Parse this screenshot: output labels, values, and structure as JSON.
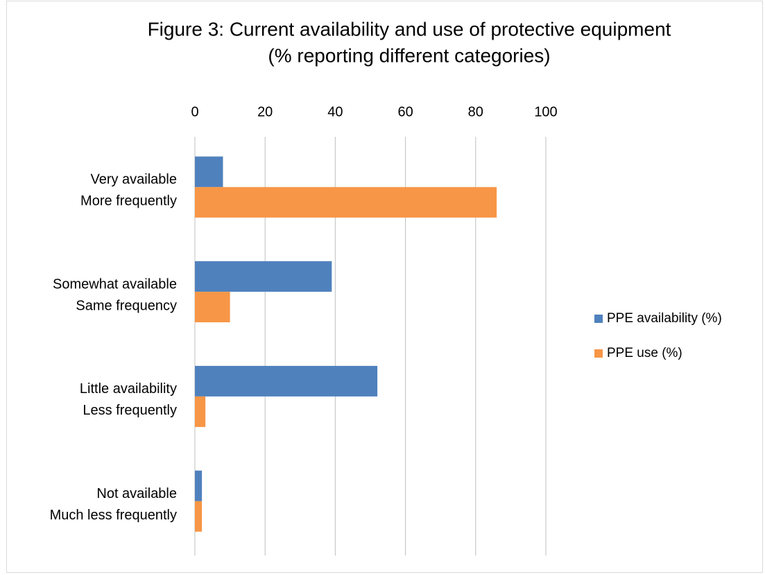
{
  "chart_data": {
    "type": "hbar",
    "title": "Figure 3: Current availability and use of protective equipment",
    "subtitle": "(% reporting different categories)",
    "categories": [
      [
        "Very available",
        "More frequently"
      ],
      [
        "Somewhat available",
        "Same frequency"
      ],
      [
        "Little availability",
        "Less frequently"
      ],
      [
        "Not available",
        "Much less frequently"
      ]
    ],
    "series": [
      {
        "name": "PPE availability (%)",
        "color": "#4f81bd",
        "values": [
          8,
          39,
          52,
          2
        ]
      },
      {
        "name": "PPE use (%)",
        "color": "#f79646",
        "values": [
          86,
          10,
          3,
          2
        ]
      }
    ],
    "xlim": [
      0,
      100
    ],
    "xticks": [
      0,
      20,
      40,
      60,
      80,
      100
    ],
    "grid": true,
    "legend": "right"
  }
}
